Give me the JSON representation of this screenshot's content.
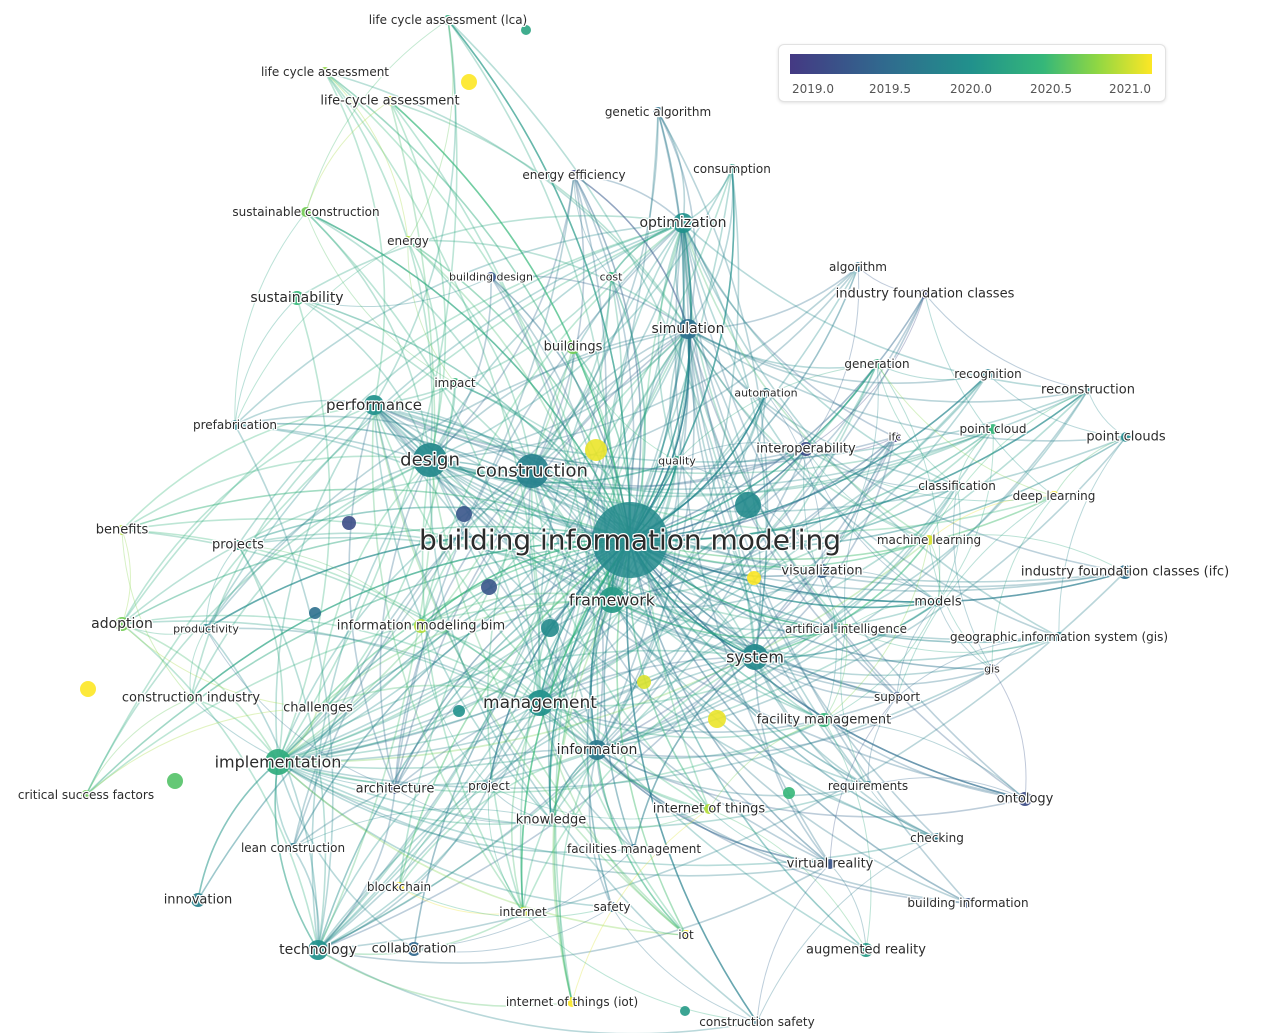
{
  "legend": {
    "ticks": [
      "2019.0",
      "2019.5",
      "2020.0",
      "2020.5",
      "2021.0"
    ],
    "colors": [
      "#443983",
      "#31688e",
      "#21918c",
      "#35b779",
      "#90d743",
      "#fde725"
    ]
  },
  "nodes": [
    {
      "id": "bim",
      "label": "building information modeling",
      "year": 2019.9,
      "weight": 10,
      "font": 28
    },
    {
      "id": "design",
      "label": "design",
      "year": 2019.9,
      "weight": 6,
      "font": 18
    },
    {
      "id": "construction",
      "label": "construction",
      "year": 2019.8,
      "weight": 6,
      "font": 18
    },
    {
      "id": "framework",
      "label": "framework",
      "year": 2020.1,
      "weight": 5,
      "font": 16
    },
    {
      "id": "management",
      "label": "management",
      "year": 2020.0,
      "weight": 5,
      "font": 17
    },
    {
      "id": "system",
      "label": "system",
      "year": 2019.9,
      "weight": 5,
      "font": 16
    },
    {
      "id": "implementation",
      "label": "implementation",
      "year": 2020.3,
      "weight": 5,
      "font": 16
    },
    {
      "id": "performance",
      "label": "performance",
      "year": 2020.0,
      "weight": 4,
      "font": 15
    },
    {
      "id": "information",
      "label": "information",
      "year": 2019.7,
      "weight": 4,
      "font": 14
    },
    {
      "id": "technology",
      "label": "technology",
      "year": 2020.0,
      "weight": 4,
      "font": 14
    },
    {
      "id": "optimization",
      "label": "optimization",
      "year": 2020.0,
      "weight": 4,
      "font": 14
    },
    {
      "id": "simulation",
      "label": "simulation",
      "year": 2019.6,
      "weight": 4,
      "font": 14
    },
    {
      "id": "sustainability",
      "label": "sustainability",
      "year": 2020.4,
      "weight": 3,
      "font": 14
    },
    {
      "id": "adoption",
      "label": "adoption",
      "year": 2020.6,
      "weight": 3,
      "font": 14
    },
    {
      "id": "innovation",
      "label": "innovation",
      "year": 2019.8,
      "weight": 3,
      "font": 13
    },
    {
      "id": "collaboration",
      "label": "collaboration",
      "year": 2019.5,
      "weight": 3,
      "font": 13
    },
    {
      "id": "augmented_reality",
      "label": "augmented reality",
      "year": 2020.1,
      "weight": 3,
      "font": 13
    },
    {
      "id": "ontology",
      "label": "ontology",
      "year": 2019.2,
      "weight": 3,
      "font": 13
    },
    {
      "id": "facility_management",
      "label": "facility management",
      "year": 2020.4,
      "weight": 3,
      "font": 13
    },
    {
      "id": "interoperability",
      "label": "interoperability",
      "year": 2019.2,
      "weight": 3,
      "font": 13
    },
    {
      "id": "ifc_full",
      "label": "industry foundation classes (ifc)",
      "year": 2019.6,
      "weight": 3,
      "font": 13
    },
    {
      "id": "models",
      "label": "models",
      "year": 2020.0,
      "weight": 2,
      "font": 13
    },
    {
      "id": "visualization",
      "label": "visualization",
      "year": 2019.4,
      "weight": 3,
      "font": 13
    },
    {
      "id": "information_modeling_bim",
      "label": "information modeling bim",
      "year": 2020.8,
      "weight": 3,
      "font": 13
    },
    {
      "id": "buildings",
      "label": "buildings",
      "year": 2020.6,
      "weight": 3,
      "font": 13
    },
    {
      "id": "energy",
      "label": "energy",
      "year": 2020.8,
      "weight": 2,
      "font": 12
    },
    {
      "id": "energy_efficiency",
      "label": "energy efficiency",
      "year": 2019.1,
      "weight": 2,
      "font": 12
    },
    {
      "id": "life_cycle_assessment",
      "label": "life cycle assessment",
      "year": 2020.7,
      "weight": 2,
      "font": 12
    },
    {
      "id": "lca_paren",
      "label": "life cycle assessment (lca)",
      "year": 2020.3,
      "weight": 2,
      "font": 12
    },
    {
      "id": "life_cycle_hyphen",
      "label": "life-cycle assessment",
      "year": 2020.9,
      "weight": 2,
      "font": 13
    },
    {
      "id": "genetic_algorithm",
      "label": "genetic algorithm",
      "year": 2019.6,
      "weight": 2,
      "font": 12
    },
    {
      "id": "consumption",
      "label": "consumption",
      "year": 2020.1,
      "weight": 2,
      "font": 12
    },
    {
      "id": "sustainable_construction",
      "label": "sustainable construction",
      "year": 2020.6,
      "weight": 2,
      "font": 12
    },
    {
      "id": "building_design",
      "label": "building design",
      "year": 2019.3,
      "weight": 2,
      "font": 11
    },
    {
      "id": "cost",
      "label": "cost",
      "year": 2020.4,
      "weight": 2,
      "font": 11
    },
    {
      "id": "algorithm",
      "label": "algorithm",
      "year": 2019.6,
      "weight": 2,
      "font": 12
    },
    {
      "id": "ifc_short",
      "label": "industry foundation classes",
      "year": 2019.1,
      "weight": 2,
      "font": 13
    },
    {
      "id": "generation",
      "label": "generation",
      "year": 2020.3,
      "weight": 2,
      "font": 12
    },
    {
      "id": "recognition",
      "label": "recognition",
      "year": 2019.8,
      "weight": 2,
      "font": 12
    },
    {
      "id": "reconstruction",
      "label": "reconstruction",
      "year": 2019.9,
      "weight": 2,
      "font": 13
    },
    {
      "id": "automation",
      "label": "automation",
      "year": 2019.8,
      "weight": 2,
      "font": 11
    },
    {
      "id": "impact",
      "label": "impact",
      "year": 2020.4,
      "weight": 2,
      "font": 12
    },
    {
      "id": "prefabrication",
      "label": "prefabrication",
      "year": 2019.8,
      "weight": 2,
      "font": 12
    },
    {
      "id": "point_cloud",
      "label": "point cloud",
      "year": 2020.4,
      "weight": 2,
      "font": 12
    },
    {
      "id": "point_clouds",
      "label": "point clouds",
      "year": 2019.9,
      "weight": 2,
      "font": 13
    },
    {
      "id": "ifc_node",
      "label": "ifc",
      "year": 2019.0,
      "weight": 2,
      "font": 11
    },
    {
      "id": "quality",
      "label": "quality",
      "year": 2020.2,
      "weight": 2,
      "font": 11
    },
    {
      "id": "classification",
      "label": "classification",
      "year": 2020.1,
      "weight": 2,
      "font": 12
    },
    {
      "id": "deep_learning",
      "label": "deep learning",
      "year": 2021.0,
      "weight": 2,
      "font": 12
    },
    {
      "id": "machine_learning",
      "label": "machine learning",
      "year": 2020.9,
      "weight": 2,
      "font": 12
    },
    {
      "id": "benefits",
      "label": "benefits",
      "year": 2020.8,
      "weight": 2,
      "font": 13
    },
    {
      "id": "projects",
      "label": "projects",
      "year": 2020.2,
      "weight": 2,
      "font": 13
    },
    {
      "id": "productivity",
      "label": "productivity",
      "year": 2019.9,
      "weight": 2,
      "font": 11
    },
    {
      "id": "artificial_intelligence",
      "label": "artificial intelligence",
      "year": 2020.6,
      "weight": 2,
      "font": 12
    },
    {
      "id": "gis_full",
      "label": "geographic information system (gis)",
      "year": 2019.8,
      "weight": 2,
      "font": 12
    },
    {
      "id": "gis",
      "label": "gis",
      "year": 2019.4,
      "weight": 2,
      "font": 11
    },
    {
      "id": "support",
      "label": "support",
      "year": 2019.3,
      "weight": 2,
      "font": 12
    },
    {
      "id": "construction_industry",
      "label": "construction industry",
      "year": 2020.5,
      "weight": 2,
      "font": 13
    },
    {
      "id": "challenges",
      "label": "challenges",
      "year": 2020.9,
      "weight": 2,
      "font": 13
    },
    {
      "id": "critical_success_factors",
      "label": "critical success factors",
      "year": 2020.6,
      "weight": 2,
      "font": 12
    },
    {
      "id": "architecture",
      "label": "architecture",
      "year": 2019.2,
      "weight": 2,
      "font": 13
    },
    {
      "id": "project",
      "label": "project",
      "year": 2019.5,
      "weight": 2,
      "font": 12
    },
    {
      "id": "knowledge",
      "label": "knowledge",
      "year": 2020.1,
      "weight": 2,
      "font": 13
    },
    {
      "id": "internet_of_things",
      "label": "internet of things",
      "year": 2020.8,
      "weight": 2,
      "font": 13
    },
    {
      "id": "requirements",
      "label": "requirements",
      "year": 2019.8,
      "weight": 2,
      "font": 12
    },
    {
      "id": "checking",
      "label": "checking",
      "year": 2019.7,
      "weight": 2,
      "font": 12
    },
    {
      "id": "lean_construction",
      "label": "lean construction",
      "year": 2019.7,
      "weight": 2,
      "font": 12
    },
    {
      "id": "facilities_management",
      "label": "facilities management",
      "year": 2019.6,
      "weight": 2,
      "font": 12
    },
    {
      "id": "virtual_reality",
      "label": "virtual reality",
      "year": 2019.3,
      "weight": 2,
      "font": 13
    },
    {
      "id": "blockchain",
      "label": "blockchain",
      "year": 2021.0,
      "weight": 2,
      "font": 12
    },
    {
      "id": "building_information",
      "label": "building information",
      "year": 2019.3,
      "weight": 2,
      "font": 12
    },
    {
      "id": "internet",
      "label": "internet",
      "year": 2020.9,
      "weight": 2,
      "font": 12
    },
    {
      "id": "safety",
      "label": "safety",
      "year": 2019.6,
      "weight": 2,
      "font": 12
    },
    {
      "id": "iot",
      "label": "iot",
      "year": 2021.0,
      "weight": 2,
      "font": 12
    },
    {
      "id": "internet_of_things_iot",
      "label": "internet of things (iot)",
      "year": 2021.0,
      "weight": 2,
      "font": 12
    },
    {
      "id": "construction_safety",
      "label": "construction safety",
      "year": 2019.7,
      "weight": 2,
      "font": 12
    }
  ]
}
